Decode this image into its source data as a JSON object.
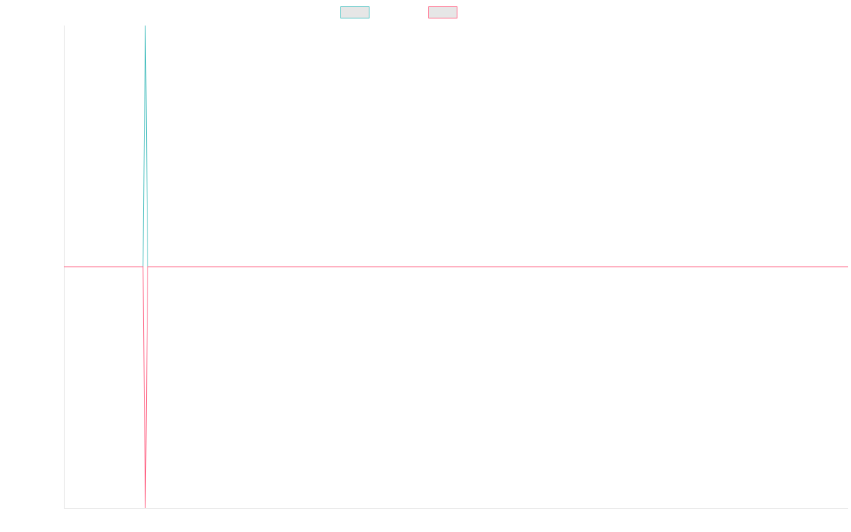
{
  "chart_data": {
    "type": "line",
    "title": "",
    "xlabel": "",
    "ylabel": "",
    "x_range": [
      0,
      100
    ],
    "ylim": [
      -1,
      1
    ],
    "grid": false,
    "legend": "top-center",
    "series": [
      {
        "color": "#4bc0c0",
        "x": [
          0,
          10.1,
          10.4,
          10.7,
          100
        ],
        "values": [
          0,
          0,
          1,
          0,
          0
        ]
      },
      {
        "color": "#ff6384",
        "x": [
          0,
          10.1,
          10.4,
          10.7,
          100
        ],
        "values": [
          0,
          0,
          -1,
          0,
          0
        ]
      }
    ]
  }
}
